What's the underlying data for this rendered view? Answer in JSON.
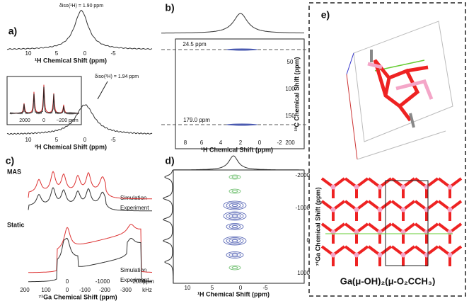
{
  "panels": {
    "a": {
      "label": "a)",
      "top_annotation": "δiso(¹H) = 1.90 ppm",
      "bottom_annotation": "δiso(²H) = 1.94 ppm",
      "top_ticks": [
        10,
        5,
        0,
        -5
      ],
      "top_axis": "¹H Chemical Shift (ppm)",
      "bottom_ticks": [
        10,
        5,
        0,
        -5
      ],
      "bottom_axis": "²H Chemical Shift (ppm)",
      "inset_ticks": [
        2000,
        0,
        "−200 ppm"
      ]
    },
    "b": {
      "label": "b)",
      "x_ticks": [
        8,
        6,
        4,
        2,
        0,
        -2
      ],
      "x_axis": "¹H Chemical Shift (ppm)",
      "y_ticks": [
        50,
        100,
        150,
        200
      ],
      "y_axis": "¹³C Chemical Shift (ppm)",
      "peak_labels": [
        "24.5 ppm",
        "179.0 ppm"
      ]
    },
    "c": {
      "label": "c)",
      "mas": "MAS",
      "static": "Static",
      "legend_top": [
        "Simulation",
        "Experiment"
      ],
      "legend_bottom": [
        "Simulation",
        "Experiment"
      ],
      "ppm_ticks": [
        0,
        -1000,
        -2000,
        "ppm"
      ],
      "khz_ticks": [
        200,
        100,
        0,
        -100,
        -200,
        -300,
        "kHz"
      ],
      "x_axis": "⁷¹Ga Chemical Shift (ppm)"
    },
    "d": {
      "label": "d)",
      "x_ticks": [
        10,
        5,
        0,
        -5
      ],
      "x_axis": "¹H Chemical Shift (ppm)",
      "y_ticks": [
        -2000,
        -1000,
        0,
        1000
      ],
      "y_axis": "⁷¹Ga Chemical Shift (ppm)"
    },
    "e": {
      "label": "e)",
      "formula": "Ga(μ-OH)₂(μ-O₂CCH₃)"
    }
  }
}
